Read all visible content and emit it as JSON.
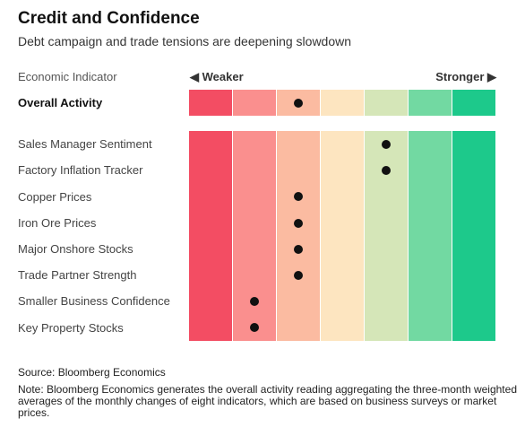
{
  "title": "Credit and Confidence",
  "subtitle": "Debt campaign and trade tensions are deepening slowdown",
  "header": {
    "indicator_label": "Economic Indicator",
    "weaker_label": "◀ Weaker",
    "stronger_label": "Stronger ▶"
  },
  "colors": {
    "scale": [
      "#f34d63",
      "#fa8f8e",
      "#fbbba1",
      "#fde5c0",
      "#d5e6b8",
      "#72d9a2",
      "#1dc98b"
    ]
  },
  "chart_data": {
    "type": "heatmap",
    "title": "Credit and Confidence",
    "scale_levels": 7,
    "scale_direction": "weaker to stronger",
    "overall": {
      "name": "Overall Activity",
      "level": 3
    },
    "indicators": [
      {
        "name": "Sales Manager Sentiment",
        "level": 5
      },
      {
        "name": "Factory Inflation Tracker",
        "level": 5
      },
      {
        "name": "Copper Prices",
        "level": 3
      },
      {
        "name": "Iron Ore Prices",
        "level": 3
      },
      {
        "name": "Major Onshore Stocks",
        "level": 3
      },
      {
        "name": "Trade Partner Strength",
        "level": 3
      },
      {
        "name": "Smaller Business Confidence",
        "level": 2
      },
      {
        "name": "Key Property Stocks",
        "level": 2
      }
    ]
  },
  "footer": {
    "source": "Source: Bloomberg Economics",
    "note": "Note: Bloomberg Economics generates the overall activity reading aggregating the three-month weighted averages of the monthly changes of eight indicators, which are based on business surveys or market prices."
  }
}
